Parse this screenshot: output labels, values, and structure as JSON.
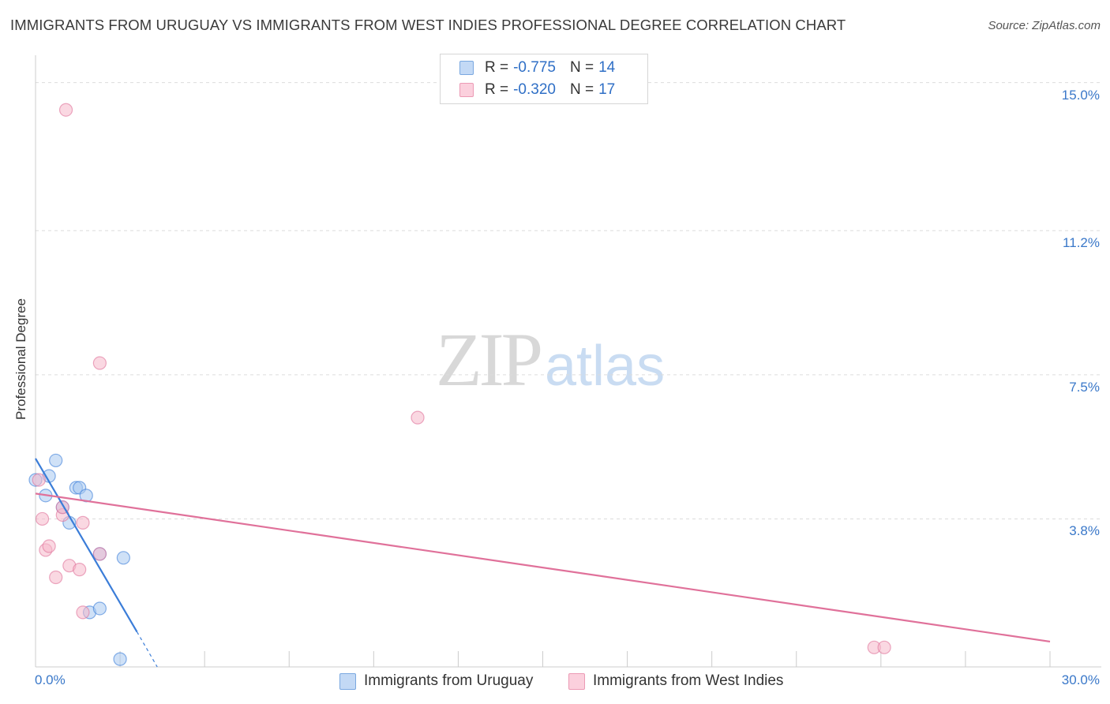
{
  "title": "IMMIGRANTS FROM URUGUAY VS IMMIGRANTS FROM WEST INDIES PROFESSIONAL DEGREE CORRELATION CHART",
  "source": "Source: ZipAtlas.com",
  "watermark": {
    "zip": "ZIP",
    "atlas": "atlas"
  },
  "legend_top": [
    {
      "r_label": "R =",
      "r_value": "-0.775",
      "n_label": "N =",
      "n_value": "14",
      "color": "#a8c8f0"
    },
    {
      "r_label": "R =",
      "r_value": "-0.320",
      "n_label": "N =",
      "n_value": "17",
      "color": "#f5b8cb"
    }
  ],
  "legend_bottom": [
    {
      "label": "Immigrants from Uruguay",
      "color": "#a8c8f0"
    },
    {
      "label": "Immigrants from West Indies",
      "color": "#f5b8cb"
    }
  ],
  "chart_data": {
    "type": "scatter",
    "ylabel": "Professional Degree",
    "xlim": [
      0,
      30
    ],
    "ylim": [
      0,
      15.5
    ],
    "y_ticks": [
      {
        "value": 15.0,
        "label": "15.0%"
      },
      {
        "value": 11.2,
        "label": "11.2%"
      },
      {
        "value": 7.5,
        "label": "7.5%"
      },
      {
        "value": 3.8,
        "label": "3.8%"
      }
    ],
    "x_ticks_labeled": [
      {
        "value": 0,
        "label": "0.0%"
      },
      {
        "value": 30,
        "label": "30.0%"
      }
    ],
    "grid": "horizontal dashed",
    "series": [
      {
        "name": "Immigrants from Uruguay",
        "color": "#3b7dd8",
        "fill": "#a8c8f0",
        "points": [
          [
            0.0,
            4.8
          ],
          [
            0.3,
            4.4
          ],
          [
            0.4,
            4.9
          ],
          [
            0.6,
            5.3
          ],
          [
            0.8,
            4.1
          ],
          [
            1.0,
            3.7
          ],
          [
            1.2,
            4.6
          ],
          [
            1.3,
            4.6
          ],
          [
            1.5,
            4.4
          ],
          [
            1.9,
            2.9
          ],
          [
            2.6,
            2.8
          ],
          [
            1.6,
            1.4
          ],
          [
            1.9,
            1.5
          ],
          [
            2.5,
            0.2
          ]
        ],
        "trend": {
          "x": [
            0,
            3.0
          ],
          "y": [
            5.35,
            0.9
          ],
          "dashed_to": [
            3.6,
            0.0
          ]
        }
      },
      {
        "name": "Immigrants from West Indies",
        "color": "#e0719a",
        "fill": "#f5b8cb",
        "points": [
          [
            0.9,
            14.3
          ],
          [
            0.1,
            4.8
          ],
          [
            0.2,
            3.8
          ],
          [
            0.3,
            3.0
          ],
          [
            0.4,
            3.1
          ],
          [
            0.6,
            2.3
          ],
          [
            0.8,
            3.9
          ],
          [
            0.8,
            4.1
          ],
          [
            1.0,
            2.6
          ],
          [
            1.3,
            2.5
          ],
          [
            1.4,
            3.7
          ],
          [
            1.4,
            1.4
          ],
          [
            1.9,
            2.9
          ],
          [
            1.9,
            7.8
          ],
          [
            11.3,
            6.4
          ],
          [
            24.8,
            0.5
          ],
          [
            25.1,
            0.5
          ]
        ],
        "trend": {
          "x": [
            0,
            30
          ],
          "y": [
            4.45,
            0.65
          ]
        }
      }
    ]
  }
}
